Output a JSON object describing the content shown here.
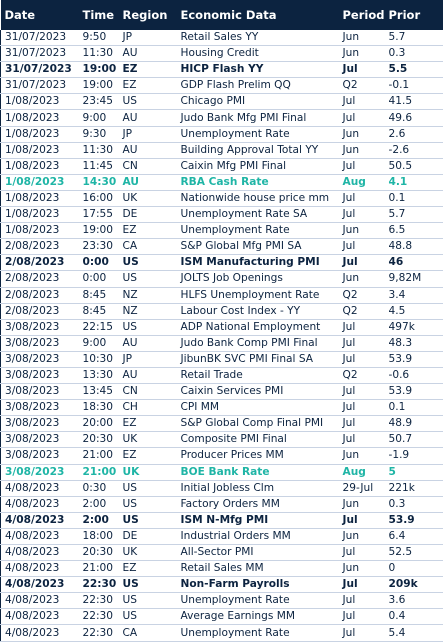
{
  "table": {
    "header": [
      "Date",
      "Time",
      "Region",
      "Economic Data",
      "Period",
      "Prior"
    ],
    "rows": [
      [
        "31/07/2023",
        "9:50",
        "JP",
        "Retail Sales YY",
        "Jun",
        "5.7"
      ],
      [
        "31/07/2023",
        "11:30",
        "AU",
        "Housing Credit",
        "Jun",
        "0.3"
      ],
      [
        "31/07/2023",
        "19:00",
        "EZ",
        "HICP Flash YY",
        "Jul",
        "5.5"
      ],
      [
        "31/07/2023",
        "19:00",
        "EZ",
        "GDP Flash Prelim QQ",
        "Q2",
        "-0.1"
      ],
      [
        "1/08/2023",
        "23:45",
        "US",
        "Chicago PMI",
        "Jul",
        "41.5"
      ],
      [
        "1/08/2023",
        "9:00",
        "AU",
        "Judo Bank Mfg PMI Final",
        "Jul",
        "49.6"
      ],
      [
        "1/08/2023",
        "9:30",
        "JP",
        "Unemployment Rate",
        "Jun",
        "2.6"
      ],
      [
        "1/08/2023",
        "11:30",
        "AU",
        "Building Approval Total YY",
        "Jun",
        "-2.6"
      ],
      [
        "1/08/2023",
        "11:45",
        "CN",
        "Caixin Mfg PMI Final",
        "Jul",
        "50.5"
      ],
      [
        "1/08/2023",
        "14:30",
        "AU",
        "RBA Cash Rate",
        "Aug",
        "4.1"
      ],
      [
        "1/08/2023",
        "16:00",
        "UK",
        "Nationwide house price mm",
        "Jul",
        "0.1"
      ],
      [
        "1/08/2023",
        "17:55",
        "DE",
        "Unemployment Rate SA",
        "Jul",
        "5.7"
      ],
      [
        "1/08/2023",
        "19:00",
        "EZ",
        "Unemployment Rate",
        "Jun",
        "6.5"
      ],
      [
        "2/08/2023",
        "23:30",
        "CA",
        "S&P Global Mfg PMI SA",
        "Jul",
        "48.8"
      ],
      [
        "2/08/2023",
        "0:00",
        "US",
        "ISM Manufacturing PMI",
        "Jul",
        "46"
      ],
      [
        "2/08/2023",
        "0:00",
        "US",
        "JOLTS Job Openings",
        "Jun",
        "9,82M"
      ],
      [
        "2/08/2023",
        "8:45",
        "NZ",
        "HLFS Unemployment Rate",
        "Q2",
        "3.4"
      ],
      [
        "2/08/2023",
        "8:45",
        "NZ",
        "Labour Cost Index - YY",
        "Q2",
        "4.5"
      ],
      [
        "3/08/2023",
        "22:15",
        "US",
        "ADP National Employment",
        "Jul",
        "497k"
      ],
      [
        "3/08/2023",
        "9:00",
        "AU",
        "Judo Bank Comp PMI Final",
        "Jul",
        "48.3"
      ],
      [
        "3/08/2023",
        "10:30",
        "JP",
        "JibunBK SVC PMI Final SA",
        "Jul",
        "53.9"
      ],
      [
        "3/08/2023",
        "13:30",
        "AU",
        "Retail Trade",
        "Q2",
        "-0.6"
      ],
      [
        "3/08/2023",
        "13:45",
        "CN",
        "Caixin Services PMI",
        "Jul",
        "53.9"
      ],
      [
        "3/08/2023",
        "18:30",
        "CH",
        "CPI MM",
        "Jul",
        "0.1"
      ],
      [
        "3/08/2023",
        "20:00",
        "EZ",
        "S&P Global Comp Final PMI",
        "Jul",
        "48.9"
      ],
      [
        "3/08/2023",
        "20:30",
        "UK",
        "Composite PMI Final",
        "Jul",
        "50.7"
      ],
      [
        "3/08/2023",
        "21:00",
        "EZ",
        "Producer Prices MM",
        "Jun",
        "-1.9"
      ],
      [
        "3/08/2023",
        "21:00",
        "UK",
        "BOE Bank Rate",
        "Aug",
        "5"
      ],
      [
        "4/08/2023",
        "0:30",
        "US",
        "Initial Jobless Clm",
        "29-Jul",
        "221k"
      ],
      [
        "4/08/2023",
        "2:00",
        "US",
        "Factory Orders MM",
        "Jun",
        "0.3"
      ],
      [
        "4/08/2023",
        "2:00",
        "US",
        "ISM N-Mfg PMI",
        "Jul",
        "53.9"
      ],
      [
        "4/08/2023",
        "18:00",
        "DE",
        "Industrial Orders MM",
        "Jun",
        "6.4"
      ],
      [
        "4/08/2023",
        "20:30",
        "UK",
        "All-Sector PMI",
        "Jul",
        "52.5"
      ],
      [
        "4/08/2023",
        "21:00",
        "EZ",
        "Retail Sales MM",
        "Jun",
        "0"
      ],
      [
        "4/08/2023",
        "22:30",
        "US",
        "Non-Farm Payrolls",
        "Jul",
        "209k"
      ],
      [
        "4/08/2023",
        "22:30",
        "US",
        "Unemployment Rate",
        "Jul",
        "3.6"
      ],
      [
        "4/08/2023",
        "22:30",
        "US",
        "Average Earnings MM",
        "Jul",
        "0.4"
      ],
      [
        "4/08/2023",
        "22:30",
        "CA",
        "Unemployment Rate",
        "Jul",
        "5.4"
      ]
    ],
    "bold_rows": [
      2,
      14,
      30,
      34
    ],
    "highlight_rows": [
      9,
      27
    ],
    "highlight_color": "#1fb5a6",
    "header_color": "#0c2340"
  }
}
